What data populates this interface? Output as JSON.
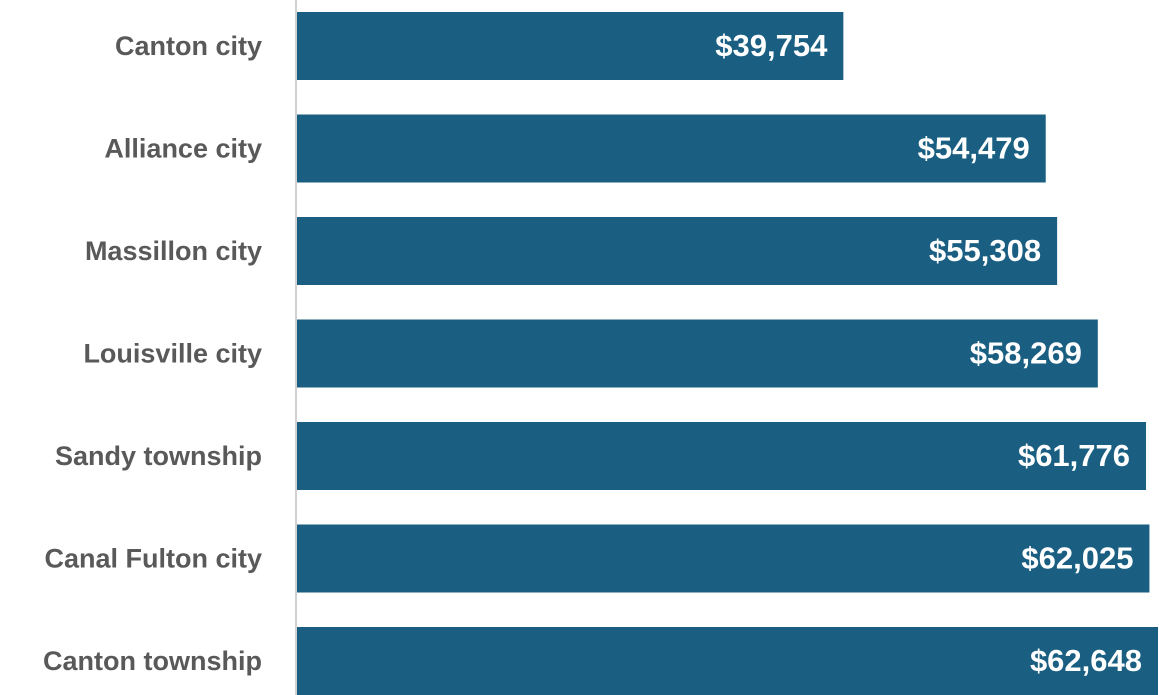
{
  "chart_data": {
    "type": "bar",
    "orientation": "horizontal",
    "categories": [
      "Canton city",
      "Alliance city",
      "Massillon city",
      "Louisville city",
      "Sandy township",
      "Canal Fulton city",
      "Canton township"
    ],
    "values": [
      39754,
      54479,
      55308,
      58269,
      61776,
      62025,
      62648
    ],
    "value_labels": [
      "$39,754",
      "$54,479",
      "$55,308",
      "$58,269",
      "$61,776",
      "$62,025",
      "$62,648"
    ],
    "color": "#1a5f82"
  }
}
